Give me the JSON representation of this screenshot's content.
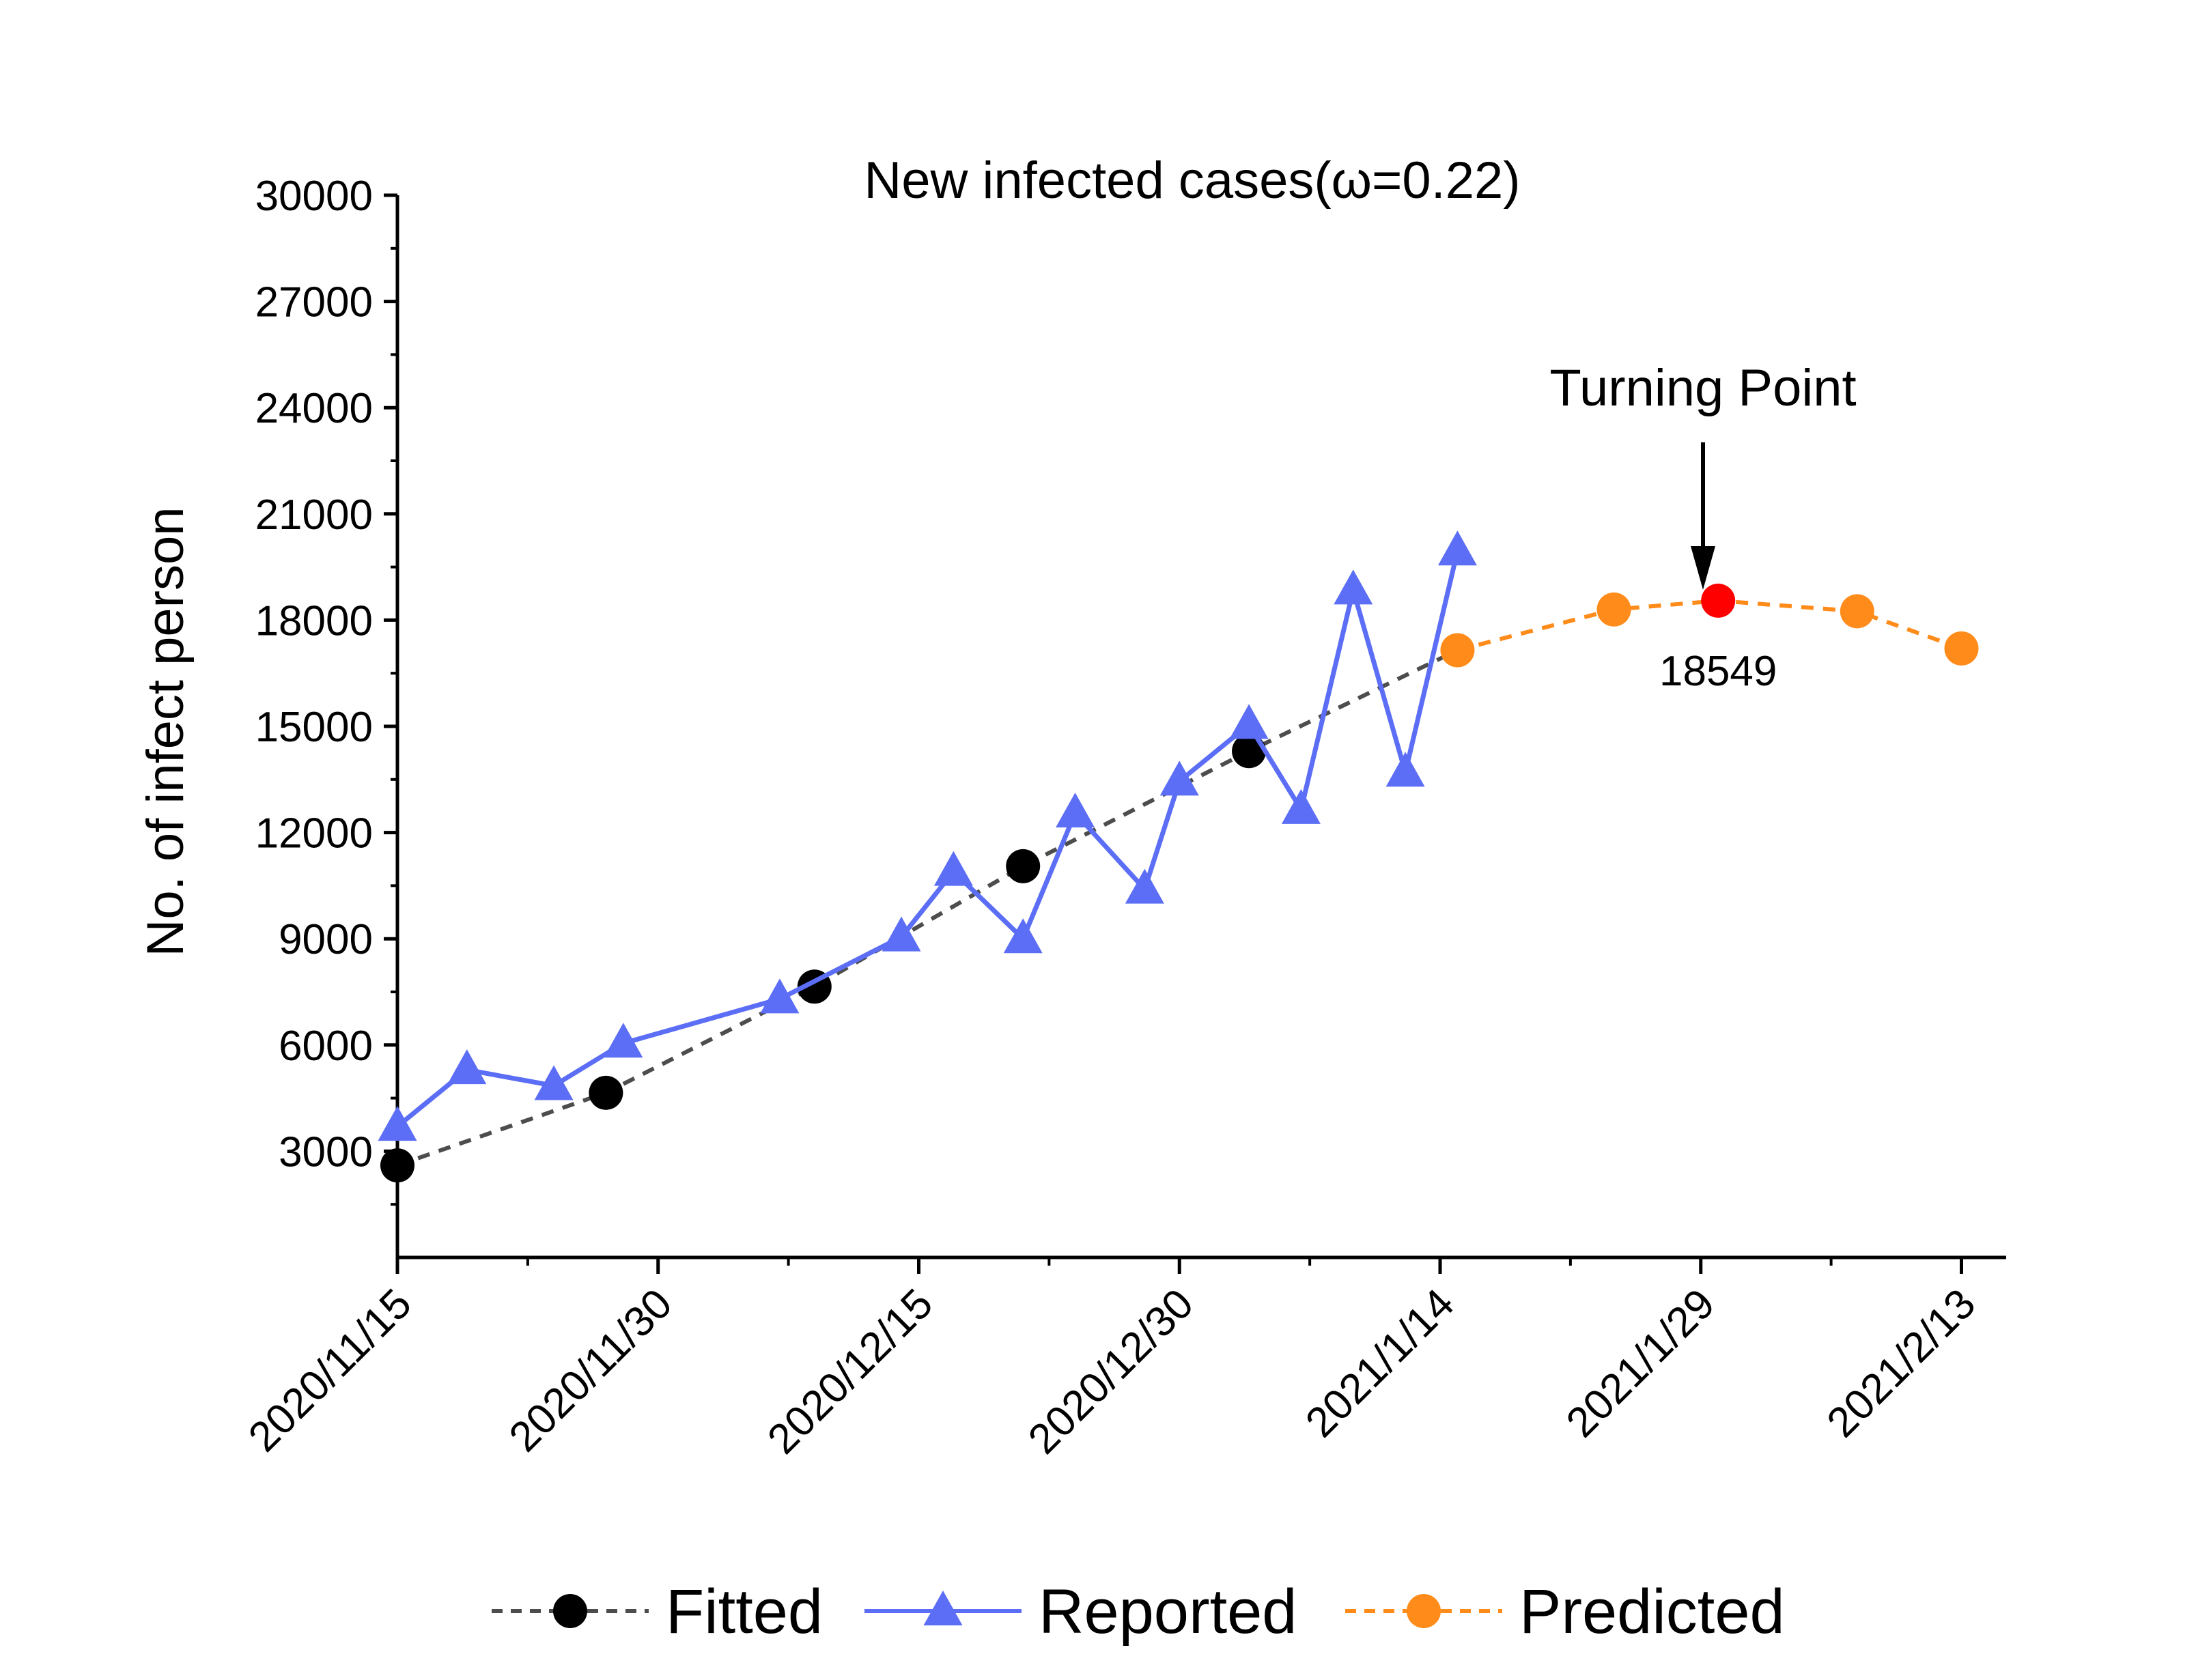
{
  "chart_data": {
    "type": "line",
    "title": "New infected cases(ω=0.22)",
    "xlabel": "",
    "ylabel": "No. of infect person",
    "ylim": [
      0,
      30000
    ],
    "yticks": [
      3000,
      6000,
      9000,
      12000,
      15000,
      18000,
      21000,
      24000,
      27000,
      30000
    ],
    "x_ticks": [
      "2020/11/15",
      "2020/11/30",
      "2020/12/15",
      "2020/12/30",
      "2021/1/14",
      "2021/1/29",
      "2021/2/13"
    ],
    "legend_position": "bottom",
    "grid": false,
    "series": [
      {
        "name": "Fitted",
        "color": "#000000",
        "line_color": "#4d4d4d",
        "line_style": "dashed",
        "marker": "circle",
        "points": [
          {
            "x": "2020/11/15",
            "y": 2600
          },
          {
            "x": "2020/11/27",
            "y": 4650
          },
          {
            "x": "2020/12/9",
            "y": 7650
          },
          {
            "x": "2020/12/21",
            "y": 11050
          },
          {
            "x": "2021/1/3",
            "y": 14300
          }
        ],
        "trend_end": {
          "x": "2021/1/15",
          "y": 17150
        }
      },
      {
        "name": "Reported",
        "color": "#5b6ef5",
        "line_style": "solid",
        "marker": "triangle",
        "points": [
          {
            "x": "2020/11/15",
            "y": 3700
          },
          {
            "x": "2020/11/19",
            "y": 5300
          },
          {
            "x": "2020/11/24",
            "y": 4850
          },
          {
            "x": "2020/11/28",
            "y": 6050
          },
          {
            "x": "2020/12/7",
            "y": 7300
          },
          {
            "x": "2020/12/14",
            "y": 9050
          },
          {
            "x": "2020/12/17",
            "y": 10900
          },
          {
            "x": "2020/12/21",
            "y": 9000
          },
          {
            "x": "2020/12/24",
            "y": 12550
          },
          {
            "x": "2020/12/28",
            "y": 10400
          },
          {
            "x": "2020/12/30",
            "y": 13450
          },
          {
            "x": "2021/1/3",
            "y": 15050
          },
          {
            "x": "2021/1/6",
            "y": 12650
          },
          {
            "x": "2021/1/9",
            "y": 18850
          },
          {
            "x": "2021/1/12",
            "y": 13700
          },
          {
            "x": "2021/1/15",
            "y": 19950
          }
        ]
      },
      {
        "name": "Predicted",
        "color": "#ff8c1a",
        "line_style": "dashed",
        "marker": "circle",
        "points": [
          {
            "x": "2021/1/15",
            "y": 17150
          },
          {
            "x": "2021/1/24",
            "y": 18300
          },
          {
            "x": "2021/1/30",
            "y": 18549
          },
          {
            "x": "2021/2/7",
            "y": 18250
          },
          {
            "x": "2021/2/13",
            "y": 17200
          }
        ]
      }
    ],
    "annotations": [
      {
        "text": "Turning Point",
        "target": {
          "x": "2021/1/30",
          "y": 18549
        },
        "marker_color": "#ff0000",
        "value_label": "18549"
      }
    ]
  }
}
